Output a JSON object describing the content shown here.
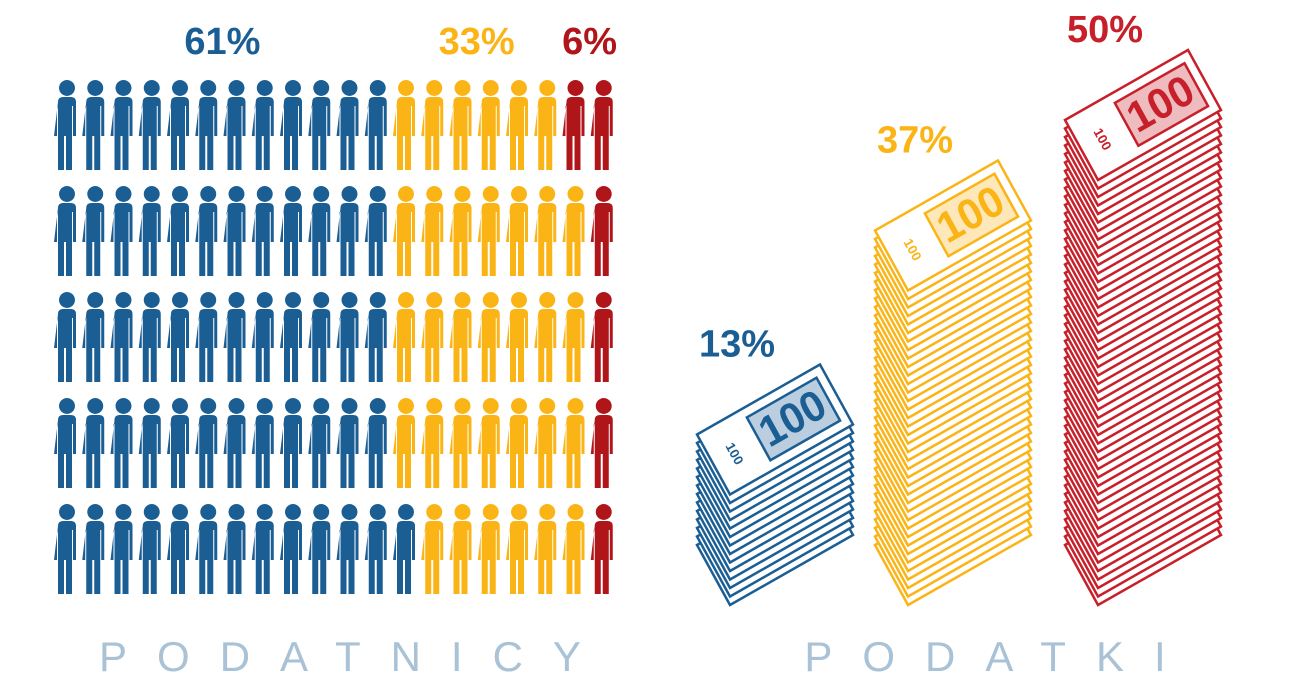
{
  "chart_data": [
    {
      "type": "pictogram",
      "title": "PODATNICY",
      "values": [
        61,
        33,
        6
      ],
      "value_labels": [
        "61%",
        "33%",
        "6%"
      ],
      "colors": [
        "#1b5e94",
        "#fbb416",
        "#b01519"
      ]
    },
    {
      "type": "money-stack",
      "title": "PODATKI",
      "note_label": "100",
      "values": [
        13,
        37,
        50
      ],
      "value_labels": [
        "13%",
        "37%",
        "50%"
      ],
      "colors": [
        "#1b5e94",
        "#fbb416",
        "#c8202a"
      ]
    }
  ]
}
